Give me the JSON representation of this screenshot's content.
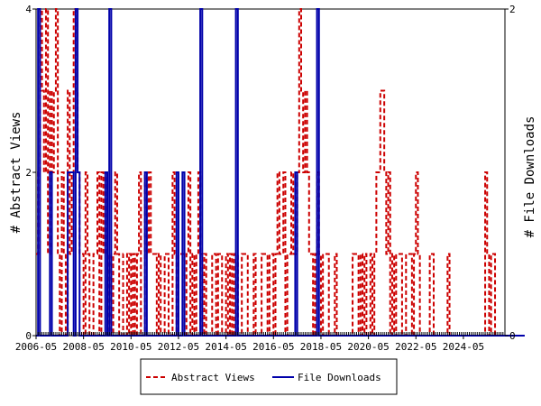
{
  "chart_data": {
    "type": "line",
    "ylabel_left": "# Abstract Views",
    "ylabel_right": "# File Downloads",
    "ylim_left": [
      0,
      4
    ],
    "ylim_right": [
      0,
      2
    ],
    "y_ticks_left": [
      "0",
      "2",
      "4"
    ],
    "y_ticks_right": [
      "0",
      "2"
    ],
    "x_tick_labels": [
      "2006-05",
      "2008-05",
      "2010-05",
      "2012-05",
      "2014-05",
      "2016-05",
      "2018-05",
      "2020-05",
      "2022-05",
      "2024-05"
    ],
    "x_start": "2006-05",
    "grid": false,
    "legend_position": "bottom",
    "series": [
      {
        "name": "Abstract Views",
        "axis": "left",
        "color": "#cc0000",
        "style": "dashed",
        "values": [
          1,
          2,
          4,
          3,
          2,
          4,
          1,
          3,
          2,
          3,
          4,
          1,
          0,
          2,
          1,
          0,
          3,
          1,
          2,
          4,
          3,
          2,
          1,
          1,
          0,
          2,
          1,
          0,
          0,
          1,
          1,
          2,
          0,
          2,
          1,
          2,
          0,
          1,
          0,
          1,
          2,
          1,
          0,
          0,
          1,
          1,
          0,
          1,
          0,
          1,
          0,
          1,
          2,
          0,
          0,
          2,
          1,
          2,
          1,
          1,
          1,
          0,
          1,
          0,
          0,
          1,
          1,
          0,
          0,
          2,
          1,
          0,
          1,
          1,
          1,
          0,
          1,
          2,
          0,
          1,
          0,
          1,
          2,
          1,
          0,
          1,
          0,
          0,
          0,
          1,
          1,
          0,
          1,
          1,
          0,
          0,
          1,
          0,
          1,
          0,
          1,
          1,
          0,
          0,
          1,
          1,
          1,
          0,
          0,
          0,
          1,
          0,
          0,
          0,
          1,
          1,
          1,
          0,
          1,
          1,
          0,
          1,
          2,
          1,
          1,
          2,
          0,
          1,
          1,
          2,
          1,
          1,
          2,
          4,
          3,
          2,
          3,
          2,
          1,
          1,
          0,
          1,
          2,
          1,
          0,
          1,
          1,
          1,
          0,
          0,
          0,
          1,
          0,
          0,
          0,
          0,
          0,
          0,
          0,
          0,
          1,
          1,
          1,
          0,
          1,
          0,
          1,
          0,
          0,
          1,
          0,
          1,
          2,
          2,
          3,
          3,
          2,
          1,
          2,
          0,
          1,
          0,
          1,
          1,
          1,
          0,
          0,
          1,
          1,
          1,
          0,
          1,
          2,
          1,
          0,
          0,
          0,
          0,
          0,
          1,
          1,
          0,
          0,
          0,
          0,
          0,
          0,
          0,
          1,
          0,
          0,
          0,
          0,
          0,
          0,
          0,
          0,
          0,
          0,
          0,
          0,
          0,
          0,
          0,
          0,
          0,
          0,
          2,
          1,
          0,
          1,
          1,
          0,
          0,
          0,
          0,
          0
        ]
      },
      {
        "name": "File Downloads",
        "axis": "right",
        "color": "#0000aa",
        "style": "solid",
        "values": [
          0,
          2,
          0,
          0,
          0,
          0,
          0,
          1,
          0,
          0,
          0,
          0,
          0,
          0,
          0,
          0,
          1,
          1,
          1,
          0,
          2,
          1,
          0,
          0,
          0,
          0,
          0,
          0,
          0,
          0,
          0,
          0,
          0,
          0,
          0,
          1,
          0,
          2,
          0,
          0,
          0,
          0,
          0,
          0,
          0,
          0,
          0,
          0,
          0,
          0,
          0,
          0,
          0,
          0,
          0,
          1,
          0,
          0,
          0,
          0,
          0,
          0,
          0,
          0,
          0,
          0,
          0,
          0,
          0,
          0,
          0,
          1,
          0,
          0,
          1,
          0,
          0,
          0,
          0,
          0,
          0,
          0,
          0,
          2,
          0,
          0,
          0,
          0,
          0,
          0,
          0,
          0,
          0,
          0,
          0,
          0,
          0,
          0,
          0,
          0,
          0,
          2,
          0,
          0,
          0,
          0,
          0,
          0,
          0,
          0,
          0,
          0,
          0,
          0,
          0,
          0,
          0,
          0,
          0,
          0,
          0,
          0,
          0,
          0,
          0,
          0,
          0,
          0,
          0,
          0,
          0,
          1,
          0,
          0,
          0,
          0,
          0,
          0,
          0,
          0,
          0,
          0,
          2,
          0,
          0,
          0,
          0,
          0,
          0,
          0,
          0,
          0,
          0,
          0,
          0,
          0,
          0,
          0,
          0,
          0,
          0,
          0,
          0,
          0,
          0,
          0,
          0,
          0,
          0,
          0,
          0,
          0,
          0,
          0,
          0,
          0,
          0,
          0,
          0,
          0,
          0,
          0,
          0,
          0,
          0,
          0,
          0,
          0,
          0,
          0,
          0,
          0,
          0,
          0,
          0,
          0,
          0,
          0,
          0,
          0,
          0,
          0,
          0,
          0,
          0,
          0,
          0,
          0,
          0,
          0,
          0,
          0,
          0,
          0,
          0,
          0,
          0,
          0,
          0,
          0,
          0,
          0,
          0,
          0,
          0,
          0,
          0,
          0,
          0,
          0,
          0,
          0,
          0,
          0,
          0,
          0,
          0,
          0,
          0,
          0,
          0,
          0,
          0,
          0,
          0,
          0,
          0
        ]
      }
    ]
  }
}
